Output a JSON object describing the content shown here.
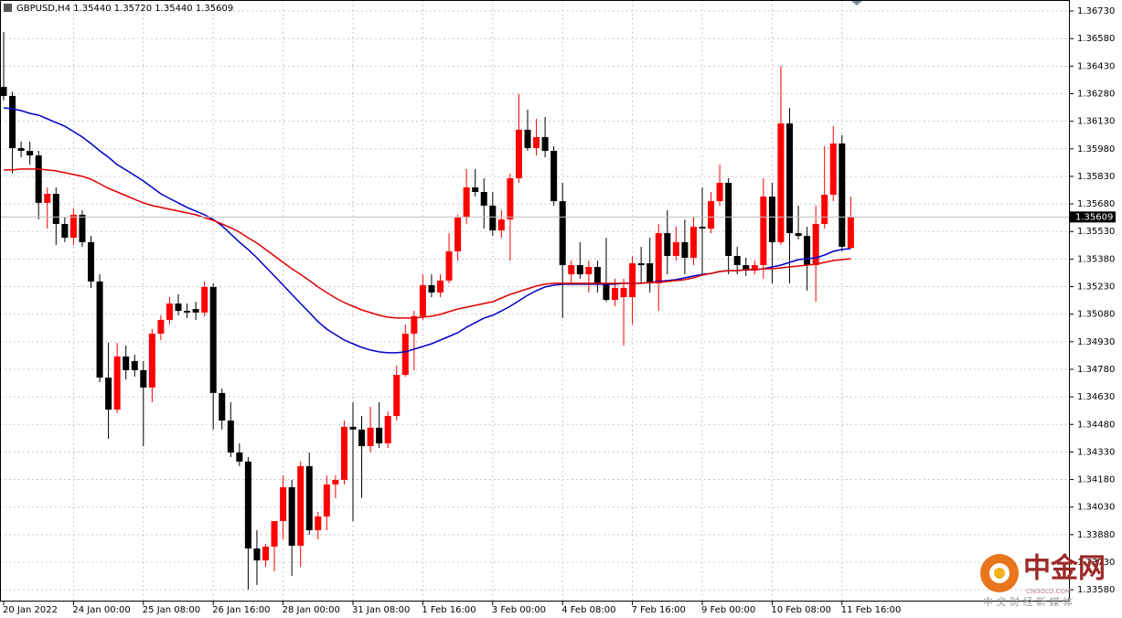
{
  "chart_data": {
    "type": "candlestick",
    "title": "GBPUSD,H4  1.35440 1.35720 1.35440 1.35609",
    "categories": [
      "20 Jan 2022",
      null,
      null,
      null,
      null,
      null,
      null,
      null,
      "24 Jan 00:00",
      null,
      null,
      null,
      null,
      null,
      null,
      null,
      "25 Jan 08:00",
      null,
      null,
      null,
      null,
      null,
      null,
      null,
      "26 Jan 16:00",
      null,
      null,
      null,
      null,
      null,
      null,
      null,
      "28 Jan 00:00",
      null,
      null,
      null,
      null,
      null,
      null,
      null,
      "31 Jan 08:00",
      null,
      null,
      null,
      null,
      null,
      null,
      null,
      "1 Feb 16:00",
      null,
      null,
      null,
      null,
      null,
      null,
      null,
      "3 Feb 00:00",
      null,
      null,
      null,
      null,
      null,
      null,
      null,
      "4 Feb 08:00",
      null,
      null,
      null,
      null,
      null,
      null,
      null,
      "7 Feb 16:00",
      null,
      null,
      null,
      null,
      null,
      null,
      null,
      "9 Feb 00:00",
      null,
      null,
      null,
      null,
      null,
      null,
      null,
      "10 Feb 08:00",
      null,
      null,
      null,
      null,
      null,
      null,
      null,
      "11 Feb 16:00",
      null
    ],
    "open": [
      1.36317,
      1.36268,
      1.35984,
      1.35969,
      1.35944,
      1.35686,
      1.35735,
      1.35571,
      1.35496,
      1.35621,
      1.35472,
      1.35258,
      1.34735,
      1.34561,
      1.3485,
      1.34825,
      1.34775,
      1.34681,
      1.34974,
      1.35049,
      1.35138,
      1.35098,
      1.35108,
      1.35089,
      1.35228,
      1.34651,
      1.34501,
      1.34327,
      1.34278,
      1.33805,
      1.3374,
      1.33815,
      1.33954,
      1.34138,
      1.3382,
      1.34253,
      1.33904,
      1.33979,
      1.34153,
      1.34178,
      1.34467,
      1.34452,
      1.34362,
      1.34462,
      1.34377,
      1.34526,
      1.3475,
      1.34974,
      1.35069,
      1.35238,
      1.35198,
      1.35263,
      1.35422,
      1.35606,
      1.3577,
      1.35745,
      1.35671,
      1.35536,
      1.35596,
      1.3582,
      1.36084,
      1.35984,
      1.36044,
      1.35969,
      1.35695,
      1.35297,
      1.35347,
      1.35297,
      1.35337,
      1.35248,
      1.35158,
      1.35173,
      1.35173,
      1.35357,
      1.35357,
      1.35248,
      1.35521,
      1.35397,
      1.35472,
      1.35387,
      1.35556,
      1.35546,
      1.35695,
      1.35795,
      1.35397,
      1.35347,
      1.35317,
      1.35347,
      1.3572,
      1.35472,
      1.36118,
      1.35521,
      1.35506,
      1.35347,
      1.35571,
      1.3573,
      1.36009,
      1.3544
    ],
    "high": [
      1.36616,
      1.36292,
      1.36019,
      1.36019,
      1.35969,
      1.3577,
      1.3577,
      1.35606,
      1.35656,
      1.35646,
      1.35506,
      1.35297,
      1.34924,
      1.34924,
      1.34909,
      1.3486,
      1.34825,
      1.34999,
      1.35074,
      1.35173,
      1.35188,
      1.35138,
      1.35148,
      1.35258,
      1.35248,
      1.34676,
      1.34601,
      1.34377,
      1.34302,
      1.33904,
      1.3383,
      1.33954,
      1.34203,
      1.34178,
      1.34278,
      1.34327,
      1.34004,
      1.34203,
      1.34203,
      1.34501,
      1.34601,
      1.34526,
      1.34576,
      1.34601,
      1.34551,
      1.348,
      1.35024,
      1.35098,
      1.35297,
      1.35297,
      1.35297,
      1.35521,
      1.35621,
      1.3587,
      1.3587,
      1.3582,
      1.35745,
      1.35646,
      1.35845,
      1.36278,
      1.36193,
      1.36143,
      1.36153,
      1.35994,
      1.35795,
      1.35372,
      1.35472,
      1.35372,
      1.35372,
      1.35496,
      1.35273,
      1.35273,
      1.35397,
      1.35447,
      1.35496,
      1.35571,
      1.35646,
      1.35556,
      1.35596,
      1.35606,
      1.3577,
      1.35745,
      1.35894,
      1.3582,
      1.35447,
      1.35387,
      1.35372,
      1.3582,
      1.35795,
      1.36432,
      1.36203,
      1.35671,
      1.35556,
      1.35671,
      1.35994,
      1.36103,
      1.36054,
      1.3572
    ],
    "low": [
      1.36243,
      1.35845,
      1.35934,
      1.35894,
      1.35596,
      1.35546,
      1.35457,
      1.35472,
      1.35457,
      1.35447,
      1.35223,
      1.3471,
      1.34402,
      1.34541,
      1.34725,
      1.3474,
      1.34362,
      1.34601,
      1.34939,
      1.35024,
      1.35074,
      1.35059,
      1.35049,
      1.35069,
      1.34452,
      1.34452,
      1.34302,
      1.34253,
      1.33581,
      1.33606,
      1.33705,
      1.33681,
      1.33855,
      1.33656,
      1.33705,
      1.3388,
      1.33855,
      1.33904,
      1.34079,
      1.34153,
      1.33954,
      1.34079,
      1.34327,
      1.34352,
      1.34352,
      1.34501,
      1.3474,
      1.34775,
      1.35049,
      1.35173,
      1.35173,
      1.35248,
      1.35372,
      1.35571,
      1.3572,
      1.35546,
      1.35506,
      1.35496,
      1.35372,
      1.35795,
      1.35969,
      1.35944,
      1.35934,
      1.35671,
      1.35059,
      1.35248,
      1.35273,
      1.35198,
      1.35198,
      1.35148,
      1.35123,
      1.34909,
      1.35024,
      1.35248,
      1.35198,
      1.35098,
      1.35297,
      1.35372,
      1.35297,
      1.35347,
      1.35297,
      1.35521,
      1.35671,
      1.35297,
      1.35297,
      1.35288,
      1.35297,
      1.35273,
      1.35248,
      1.35457,
      1.35248,
      1.35487,
      1.35208,
      1.35148,
      1.35546,
      1.35695,
      1.35422,
      1.3544
    ],
    "close": [
      1.36268,
      1.35984,
      1.35969,
      1.35944,
      1.35686,
      1.35735,
      1.35571,
      1.35496,
      1.35621,
      1.35472,
      1.35258,
      1.34735,
      1.34561,
      1.3485,
      1.34775,
      1.34775,
      1.34681,
      1.34974,
      1.35049,
      1.35138,
      1.35098,
      1.35089,
      1.35089,
      1.35228,
      1.34651,
      1.34501,
      1.34327,
      1.34278,
      1.33805,
      1.3374,
      1.33815,
      1.33954,
      1.34138,
      1.3382,
      1.34253,
      1.33904,
      1.33979,
      1.34153,
      1.34178,
      1.34467,
      1.34452,
      1.34362,
      1.34462,
      1.34377,
      1.34526,
      1.3475,
      1.34974,
      1.35069,
      1.35238,
      1.35198,
      1.35263,
      1.35422,
      1.35606,
      1.3577,
      1.35745,
      1.35671,
      1.35536,
      1.35596,
      1.3582,
      1.36084,
      1.35984,
      1.36044,
      1.35969,
      1.35695,
      1.35347,
      1.35347,
      1.35297,
      1.35337,
      1.35248,
      1.35158,
      1.35223,
      1.35223,
      1.35357,
      1.35347,
      1.35248,
      1.35521,
      1.35397,
      1.35472,
      1.35387,
      1.35556,
      1.35546,
      1.35695,
      1.35795,
      1.35397,
      1.35347,
      1.35317,
      1.35347,
      1.3572,
      1.35472,
      1.36118,
      1.35521,
      1.35506,
      1.35347,
      1.35571,
      1.3573,
      1.36009,
      1.35447,
      1.35609
    ],
    "up_color": "#ff0000",
    "down_color": "#000000",
    "lines": [
      {
        "color": "#0000c8",
        "values": [
          1.36203,
          1.36198,
          1.36188,
          1.36173,
          1.36163,
          1.36143,
          1.36123,
          1.36103,
          1.36074,
          1.36044,
          1.36009,
          1.35969,
          1.35934,
          1.35894,
          1.35865,
          1.35835,
          1.35805,
          1.3577,
          1.35735,
          1.3571,
          1.35686,
          1.35661,
          1.35641,
          1.35621,
          1.35596,
          1.35561,
          1.35516,
          1.35472,
          1.35432,
          1.35387,
          1.35337,
          1.35288,
          1.35238,
          1.35188,
          1.35138,
          1.35089,
          1.35039,
          1.34999,
          1.34969,
          1.34939,
          1.34919,
          1.34899,
          1.34885,
          1.34875,
          1.3487,
          1.3487,
          1.34875,
          1.3489,
          1.34904,
          1.34919,
          1.34939,
          1.34959,
          1.34979,
          1.35009,
          1.35034,
          1.35059,
          1.35074,
          1.35098,
          1.35123,
          1.35153,
          1.35183,
          1.35208,
          1.35228,
          1.35238,
          1.35243,
          1.35243,
          1.35243,
          1.35243,
          1.35243,
          1.35243,
          1.35243,
          1.35248,
          1.35248,
          1.35248,
          1.35253,
          1.35258,
          1.35263,
          1.35268,
          1.35278,
          1.35288,
          1.35297,
          1.35302,
          1.35312,
          1.35317,
          1.35317,
          1.35322,
          1.35322,
          1.35327,
          1.35337,
          1.35347,
          1.35362,
          1.35377,
          1.35382,
          1.35387,
          1.35402,
          1.35422,
          1.35432,
          1.35437
        ]
      },
      {
        "color": "#e00000",
        "values": [
          1.35865,
          1.35865,
          1.3587,
          1.3587,
          1.3587,
          1.35865,
          1.3586,
          1.3585,
          1.3584,
          1.3583,
          1.35815,
          1.3579,
          1.35765,
          1.35745,
          1.35725,
          1.35705,
          1.35686,
          1.35671,
          1.35661,
          1.35651,
          1.35641,
          1.35631,
          1.35621,
          1.35606,
          1.35591,
          1.35571,
          1.35551,
          1.35526,
          1.35496,
          1.35467,
          1.35432,
          1.35397,
          1.35362,
          1.35327,
          1.35297,
          1.35263,
          1.35228,
          1.35198,
          1.35168,
          1.35143,
          1.35123,
          1.35103,
          1.35089,
          1.35074,
          1.35064,
          1.35059,
          1.35059,
          1.35059,
          1.35064,
          1.35069,
          1.35079,
          1.35094,
          1.35108,
          1.35118,
          1.35128,
          1.35138,
          1.35148,
          1.35168,
          1.35188,
          1.35203,
          1.35218,
          1.35233,
          1.35243,
          1.35248,
          1.35248,
          1.35248,
          1.35248,
          1.35248,
          1.35248,
          1.35248,
          1.35248,
          1.35248,
          1.35248,
          1.35248,
          1.35253,
          1.35253,
          1.35258,
          1.35263,
          1.35268,
          1.35278,
          1.35293,
          1.35302,
          1.35312,
          1.35317,
          1.35317,
          1.35322,
          1.35322,
          1.35327,
          1.35327,
          1.35332,
          1.35337,
          1.35342,
          1.35347,
          1.35352,
          1.35362,
          1.35372,
          1.35377,
          1.35382
        ]
      }
    ],
    "ylim": [
      1.33516,
      1.3679
    ],
    "yticks": [
      {
        "value": 1.3358,
        "label": "1.33580"
      },
      {
        "value": 1.3373,
        "label": "1.33730"
      },
      {
        "value": 1.3388,
        "label": "1.33880"
      },
      {
        "value": 1.3403,
        "label": "1.34030"
      },
      {
        "value": 1.3418,
        "label": "1.34180"
      },
      {
        "value": 1.3433,
        "label": "1.34330"
      },
      {
        "value": 1.3448,
        "label": "1.34480"
      },
      {
        "value": 1.3463,
        "label": "1.34630"
      },
      {
        "value": 1.3478,
        "label": "1.34780"
      },
      {
        "value": 1.3493,
        "label": "1.34930"
      },
      {
        "value": 1.3508,
        "label": "1.35080"
      },
      {
        "value": 1.3523,
        "label": "1.35230"
      },
      {
        "value": 1.3538,
        "label": "1.35380"
      },
      {
        "value": 1.3553,
        "label": "1.35530"
      },
      {
        "value": 1.3568,
        "label": "1.35680"
      },
      {
        "value": 1.3583,
        "label": "1.35830"
      },
      {
        "value": 1.3598,
        "label": "1.35980"
      },
      {
        "value": 1.3613,
        "label": "1.36130"
      },
      {
        "value": 1.3628,
        "label": "1.36280"
      },
      {
        "value": 1.3643,
        "label": "1.36430"
      },
      {
        "value": 1.3658,
        "label": "1.36580"
      },
      {
        "value": 1.3673,
        "label": "1.36730"
      }
    ],
    "grid": true,
    "watermark": {
      "brand": "中金网",
      "site": "CNGOLD.COM",
      "slogan": "中 文 财 经 新 媒 体"
    }
  }
}
